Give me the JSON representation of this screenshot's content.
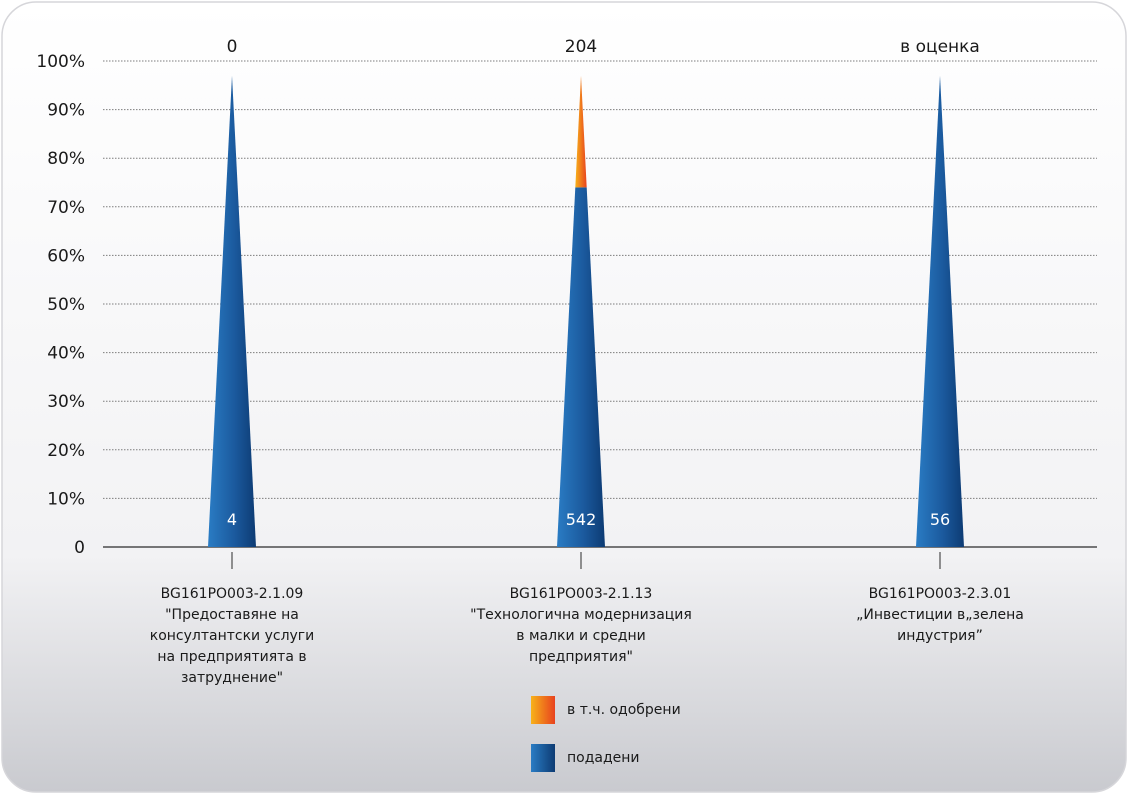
{
  "chart_data": {
    "type": "bar",
    "shape": "cone",
    "yticks": [
      "100%",
      "90%",
      "80%",
      "70%",
      "60%",
      "50%",
      "40%",
      "30%",
      "20%",
      "10%",
      "0"
    ],
    "ylim": [
      0,
      100
    ],
    "grid": true,
    "legend_placement": "bottom-center",
    "categories": [
      "BG161PO003-2.1.09\n\"Предоставяне на\nконсултантски услуги\nна предприятията в\nзатруднение\"",
      "BG161PO003-2.1.13\n\"Технологична модернизация\nв малки и средни\nпредприятия\"",
      "BG161PO003-2.3.01\n„Инвестиции в„зелена\nиндустрия”"
    ],
    "top_labels": [
      "0",
      "204",
      "в оценка"
    ],
    "series": [
      {
        "name": "подадени",
        "color": "#1f5ea8",
        "values": [
          97,
          74,
          97
        ],
        "labels": [
          "4",
          "542",
          "56"
        ]
      },
      {
        "name": "в т.ч. одобрени",
        "color": "#f28a1e",
        "values": [
          0,
          23,
          0
        ]
      }
    ]
  },
  "legend": [
    {
      "label": "в т.ч. одобрени",
      "color": "#f28a1e",
      "gradient": [
        "#f7b21a",
        "#e8421e"
      ]
    },
    {
      "label": "подадени",
      "color": "#1f5ea8",
      "gradient": [
        "#2a7cc4",
        "#0d3b73"
      ]
    }
  ]
}
